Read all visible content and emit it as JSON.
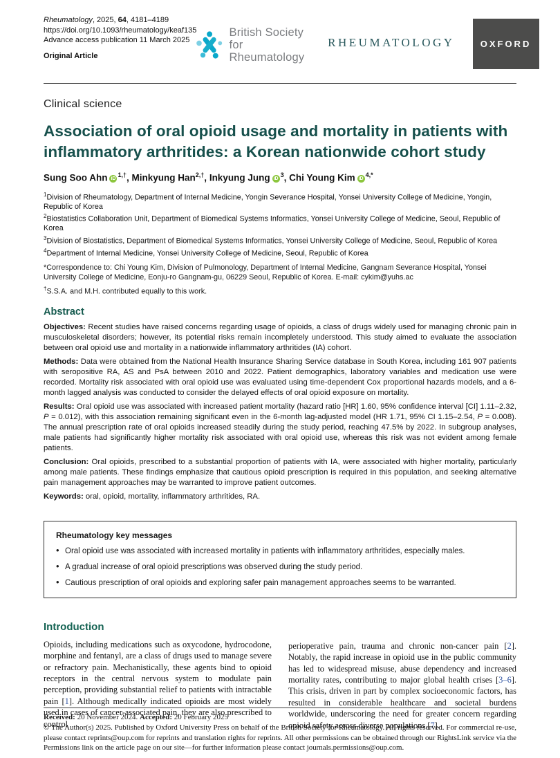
{
  "colors": {
    "title_teal": "#17504c",
    "heading_teal": "#156353",
    "citation_blue": "#2f54a3",
    "orcid_green": "#8CC63E",
    "bsr_teal": "#0aa8ca",
    "bsr_light_blue": "#7ed0e4",
    "oxford_gray": "#4c4c4b",
    "wordmark_teal": "#29585c"
  },
  "meta": {
    "journal_line": [
      {
        "t": "Rheumatology",
        "c": "i"
      },
      {
        "t": ", 2025, "
      },
      {
        "t": "64",
        "c": "b"
      },
      {
        "t": ", 4181–4189"
      }
    ],
    "doi": "https://doi.org/10.1093/rheumatology/keaf135",
    "advance": "Advance access publication 11 March 2025",
    "article_type": "Original Article"
  },
  "logos": {
    "bsr": {
      "line1": "British Society for",
      "line2": "Rheumatology"
    },
    "orcid_label": "iD",
    "journal_wordmark": "RHEUMATOLOGY",
    "oxford": "OXFORD"
  },
  "article": {
    "section_label": "Clinical science",
    "title": "Association of oral opioid usage and mortality in patients with inflammatory arthritides: a Korean nationwide cohort study",
    "author_separator": ", ",
    "authors": [
      {
        "name": "Sung Soo Ahn",
        "sup": "1,†",
        "orcid": true
      },
      {
        "name": "Minkyung Han",
        "sup": "2,†",
        "orcid": false
      },
      {
        "name": "Inkyung Jung",
        "sup": "3",
        "orcid": true
      },
      {
        "name": "Chi Young Kim",
        "sup": "4,*",
        "orcid": true
      }
    ],
    "affiliations": [
      {
        "sup": "1",
        "text": "Division of Rheumatology, Department of Internal Medicine, Yongin Severance Hospital, Yonsei University College of Medicine, Yongin, Republic of Korea"
      },
      {
        "sup": "2",
        "text": "Biostatistics Collaboration Unit, Department of Biomedical Systems Informatics, Yonsei University College of Medicine, Seoul, Republic of Korea"
      },
      {
        "sup": "3",
        "text": "Division of Biostatistics, Department of Biomedical Systems Informatics, Yonsei University College of Medicine, Seoul, Republic of Korea"
      },
      {
        "sup": "4",
        "text": "Department of Internal Medicine, Yonsei University College of Medicine, Seoul, Republic of Korea"
      }
    ],
    "correspondence": {
      "marker": "*",
      "text": "Correspondence to: Chi Young Kim, Division of Pulmonology, Department of Internal Medicine, Gangnam Severance Hospital, Yonsei University College of Medicine, Eonju-ro Gangnam-gu, 06229 Seoul, Republic of Korea. E-mail: cykim@yuhs.ac"
    },
    "equal_contribution": {
      "marker": "†",
      "text": "S.S.A. and M.H. contributed equally to this work."
    }
  },
  "abstract": {
    "heading": "Abstract",
    "objectives": {
      "label": "Objectives:",
      "text": " Recent studies have raised concerns regarding usage of opioids, a class of drugs widely used for managing chronic pain in musculoskeletal disorders; however, its potential risks remain incompletely understood. This study aimed to evaluate the association between oral opioid use and mortality in a nationwide inflammatory arthritides (IA) cohort."
    },
    "methods": {
      "label": "Methods:",
      "text": " Data were obtained from the National Health Insurance Sharing Service database in South Korea, including 161 907 patients with seropositive RA, AS and PsA between 2010 and 2022. Patient demographics, laboratory variables and medication use were recorded. Mortality risk associated with oral opioid use was evaluated using time-dependent Cox proportional hazards models, and a 6-month lagged analysis was conducted to consider the delayed effects of oral opioid exposure on mortality."
    },
    "results_segments": [
      {
        "t": "Results:",
        "c": "b"
      },
      {
        "t": " Oral opioid use was associated with increased patient mortality (hazard ratio [HR] 1.60, 95% confidence interval [CI] 1.11–2.32, "
      },
      {
        "t": "P",
        "c": "i"
      },
      {
        "t": " = 0.012), with this association remaining significant even in the 6-month lag-adjusted model (HR 1.71, 95% CI 1.15–2.54, "
      },
      {
        "t": "P",
        "c": "i"
      },
      {
        "t": " = 0.008). The annual prescription rate of oral opioids increased steadily during the study period, reaching 47.5% by 2022. In subgroup analyses, male patients had significantly higher mortality risk associated with oral opioid use, whereas this risk was not evident among female patients."
      }
    ],
    "conclusion": {
      "label": "Conclusion:",
      "text": " Oral opioids, prescribed to a substantial proportion of patients with IA, were associated with higher mortality, particularly among male patients. These findings emphasize that cautious opioid prescription is required in this population, and seeking alternative pain management approaches may be warranted to improve patient outcomes."
    },
    "keywords": {
      "label": "Keywords:",
      "text": " oral, opioid, mortality, inflammatory arthritides, RA."
    }
  },
  "key_messages": {
    "title": "Rheumatology key messages",
    "items": [
      "Oral opioid use was associated with increased mortality in patients with inflammatory arthritides, especially males.",
      "A gradual increase of oral opioid prescriptions was observed during the study period.",
      "Cautious prescription of oral opioids and exploring safer pain management approaches seems to be warranted."
    ]
  },
  "introduction": {
    "heading": "Introduction",
    "col1_segments": [
      {
        "t": "Opioids, including medications such as oxycodone, hydrocodone, morphine and fentanyl, are a class of drugs used to manage severe or refractory pain. Mechanistically, these agents bind to opioid receptors in the central nervous system to modulate pain perception, providing substantial relief to patients with intractable pain ["
      },
      {
        "t": "1",
        "c": "link"
      },
      {
        "t": "]. Although medically indicated opioids are most widely used in cases of cancer-associated pain, they are also prescribed to control"
      }
    ],
    "col2_segments": [
      {
        "t": "perioperative pain, trauma and chronic non-cancer pain ["
      },
      {
        "t": "2",
        "c": "link"
      },
      {
        "t": "]. Notably, the rapid increase in opioid use in the public community has led to widespread misuse, abuse dependency and increased mortality rates, contributing to major global health crises ["
      },
      {
        "t": "3–6",
        "c": "link"
      },
      {
        "t": "]. This crisis, driven in part by complex socioeconomic factors, has resulted in considerable healthcare and societal burdens worldwide, underscoring the need for greater concern regarding opioid safety across diverse populations ["
      },
      {
        "t": "7",
        "c": "link"
      },
      {
        "t": "]."
      }
    ]
  },
  "footer": {
    "received_segments": [
      {
        "t": "Received:",
        "c": "b"
      },
      {
        "t": " 20 November 2024. "
      },
      {
        "t": "Accepted:",
        "c": "b"
      },
      {
        "t": " 20 February 2025"
      }
    ],
    "copyright": "© The Author(s) 2025. Published by Oxford University Press on behalf of the British Society for Rheumatology. All rights reserved. For commercial re-use, please contact reprints@oup.com for reprints and translation rights for reprints. All other permissions can be obtained through our RightsLink service via the Permissions link on the article page on our site—for further information please contact journals.permissions@oup.com."
  }
}
